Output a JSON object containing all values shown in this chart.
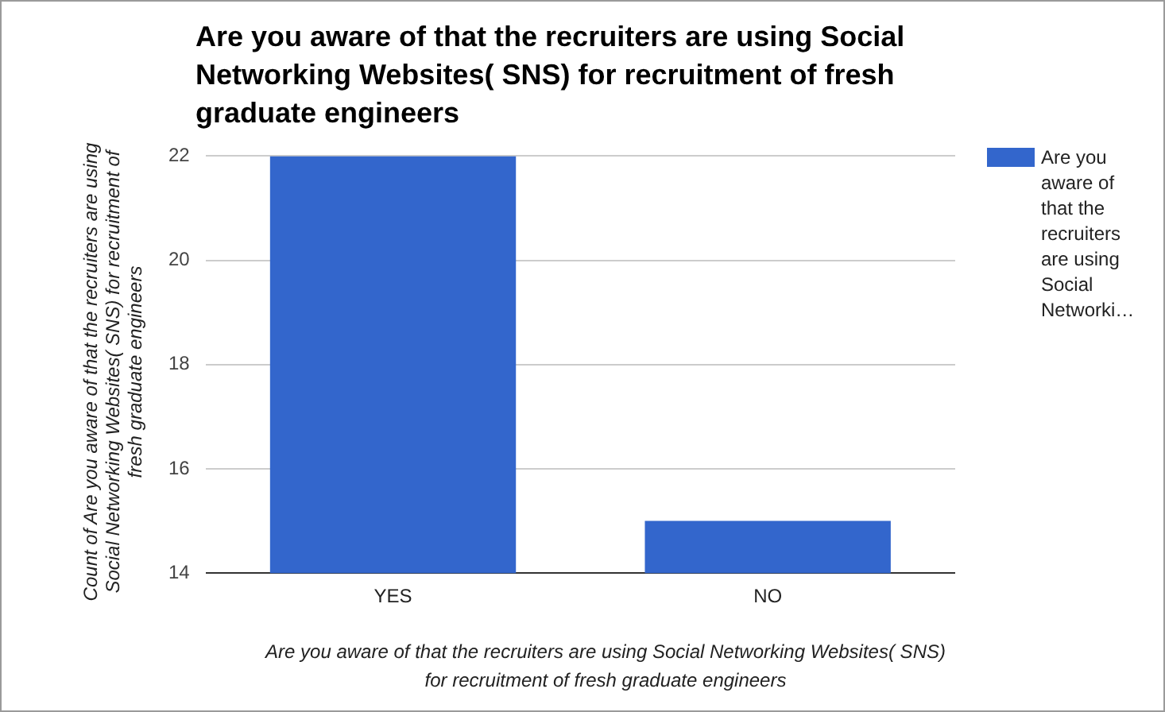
{
  "chart_data": {
    "type": "bar",
    "title": "Are you aware of that the recruiters are using Social Networking Websites( SNS) for recruitment of fresh graduate engineers",
    "xlabel": "Are you aware of that the recruiters are using Social Networking Websites( SNS) for recruitment of fresh graduate engineers",
    "ylabel": "Count of Are you aware of that the recruiters are using Social Networking Websites( SNS) for recruitment of fresh graduate engineers",
    "categories": [
      "YES",
      "NO"
    ],
    "series": [
      {
        "name": "Are you aware of that the recruiters are using Social Networki…",
        "color": "#3366cc",
        "values": [
          22,
          15
        ]
      }
    ],
    "ylim": [
      14,
      22
    ],
    "yticks": [
      14,
      16,
      18,
      20,
      22
    ],
    "grid": "y",
    "legend": "right"
  }
}
